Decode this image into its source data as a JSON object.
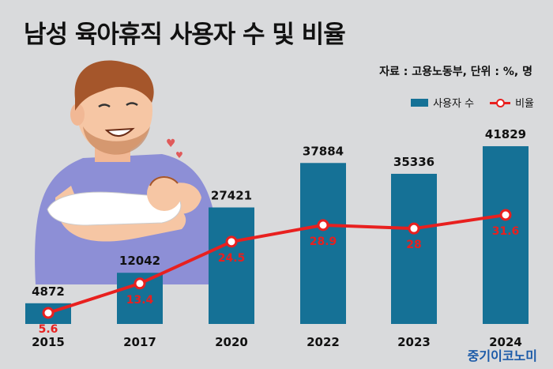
{
  "title": "남성 육아휴직 사용자 수 및 비율",
  "source": "자료 : 고용노동부, 단위 : %, 명",
  "brand": "중기이코노미",
  "legend": {
    "bar_label": "사용자 수",
    "line_label": "비율"
  },
  "colors": {
    "bar": "#157196",
    "line": "#e8201f",
    "background": "#d9dadc"
  },
  "chart_data": {
    "type": "bar",
    "title": "남성 육아휴직 사용자 수 및 비율",
    "categories": [
      "2015",
      "2017",
      "2020",
      "2022",
      "2023",
      "2024"
    ],
    "series": [
      {
        "name": "사용자 수",
        "type": "bar",
        "values": [
          4872,
          12042,
          27421,
          37884,
          35336,
          41829
        ]
      },
      {
        "name": "비율",
        "type": "line",
        "values": [
          5.6,
          13.4,
          24.5,
          28.9,
          28,
          31.6
        ]
      }
    ],
    "bar_ylim": [
      0,
      45000
    ],
    "line_ylim": [
      0,
      55
    ],
    "grid": false,
    "legend_position": "top-right"
  }
}
